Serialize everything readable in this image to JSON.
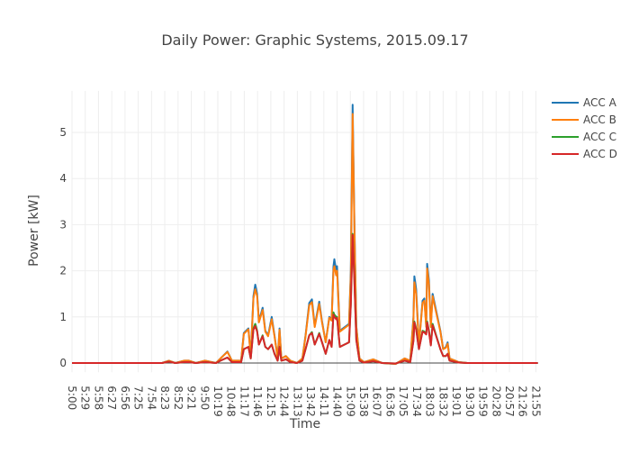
{
  "chart_data": {
    "type": "line",
    "title": "Daily Power: Graphic Systems,  2015.09.17",
    "xlabel": "Time",
    "ylabel": "Power [kW]",
    "xlim": [
      "5:00",
      "22:00"
    ],
    "ylim": [
      -0.2,
      5.9
    ],
    "grid": true,
    "legend_position": "top-right",
    "x_ticks": [
      "5:00",
      "5:29",
      "5:58",
      "6:27",
      "6:56",
      "7:25",
      "7:54",
      "8:23",
      "8:52",
      "9:21",
      "9:50",
      "10:19",
      "10:48",
      "11:17",
      "11:46",
      "12:15",
      "12:44",
      "13:13",
      "13:42",
      "14:11",
      "14:40",
      "15:09",
      "15:38",
      "16:07",
      "16:36",
      "17:05",
      "17:34",
      "18:03",
      "18:32",
      "19:01",
      "19:30",
      "19:59",
      "20:28",
      "20:57",
      "21:26",
      "21:55"
    ],
    "y_ticks": [
      0,
      1,
      2,
      3,
      4,
      5
    ],
    "x": [
      "5:00",
      "8:17",
      "8:32",
      "8:46",
      "9:06",
      "9:16",
      "9:31",
      "9:51",
      "10:15",
      "10:25",
      "10:40",
      "10:50",
      "11:10",
      "11:16",
      "11:26",
      "11:31",
      "11:37",
      "11:41",
      "11:45",
      "11:49",
      "11:57",
      "12:03",
      "12:09",
      "12:17",
      "12:23",
      "12:30",
      "12:34",
      "12:38",
      "12:48",
      "12:58",
      "13:12",
      "13:24",
      "13:31",
      "13:39",
      "13:45",
      "13:51",
      "14:01",
      "14:07",
      "14:15",
      "14:23",
      "14:28",
      "14:32",
      "14:34",
      "14:38",
      "14:40",
      "14:46",
      "15:06",
      "15:10",
      "15:14",
      "15:18",
      "15:22",
      "15:29",
      "15:39",
      "15:59",
      "16:19",
      "16:48",
      "17:08",
      "17:20",
      "17:27",
      "17:29",
      "17:33",
      "17:39",
      "17:47",
      "17:51",
      "17:55",
      "17:57",
      "18:01",
      "18:05",
      "18:09",
      "18:26",
      "18:32",
      "18:38",
      "18:42",
      "18:46",
      "19:06",
      "19:25",
      "21:59"
    ],
    "series": [
      {
        "name": "ACC A",
        "color": "#1f77b4",
        "values": [
          0,
          0,
          0.05,
          0,
          0.05,
          0.05,
          0,
          0.05,
          0,
          0.1,
          0.25,
          0.05,
          0.05,
          0.65,
          0.75,
          0.15,
          1.45,
          1.7,
          1.5,
          0.9,
          1.2,
          0.7,
          0.6,
          1.0,
          0.6,
          0.1,
          0.75,
          0.1,
          0.15,
          0.05,
          0,
          0.1,
          0.6,
          1.3,
          1.38,
          0.8,
          1.33,
          0.9,
          0.45,
          1.0,
          0.95,
          2.1,
          2.25,
          2.0,
          2.1,
          0.7,
          0.85,
          2.0,
          5.6,
          3.0,
          0.8,
          0.1,
          0.02,
          0.08,
          0,
          -0.02,
          0.1,
          0.05,
          1.0,
          1.88,
          1.6,
          0.4,
          1.35,
          1.4,
          0.8,
          2.15,
          1.78,
          0.8,
          1.5,
          0.7,
          0.3,
          0.35,
          0.45,
          0.1,
          0.02,
          0,
          0
        ]
      },
      {
        "name": "ACC B",
        "color": "#ff7f0e",
        "values": [
          0,
          0,
          0.05,
          0,
          0.05,
          0.05,
          0,
          0.05,
          0,
          0.1,
          0.24,
          0.05,
          0.05,
          0.63,
          0.73,
          0.15,
          1.4,
          1.6,
          1.45,
          0.88,
          1.15,
          0.68,
          0.58,
          0.95,
          0.58,
          0.1,
          0.72,
          0.1,
          0.15,
          0.05,
          0,
          0.1,
          0.58,
          1.25,
          1.32,
          0.78,
          1.28,
          0.88,
          0.45,
          0.98,
          0.92,
          2.0,
          2.1,
          1.9,
          2.0,
          0.68,
          0.83,
          1.9,
          5.4,
          2.9,
          0.78,
          0.1,
          0.02,
          0.08,
          0,
          -0.02,
          0.1,
          0.05,
          0.95,
          1.75,
          1.5,
          0.4,
          1.3,
          1.35,
          0.78,
          2.05,
          1.7,
          0.78,
          1.45,
          0.68,
          0.3,
          0.33,
          0.42,
          0.1,
          0.02,
          0,
          0
        ]
      },
      {
        "name": "ACC C",
        "color": "#2ca02c",
        "values": [
          0,
          0,
          0.03,
          0,
          0.02,
          0.02,
          0,
          0.02,
          0,
          0.05,
          0.12,
          0.02,
          0.02,
          0.3,
          0.35,
          0.1,
          0.75,
          0.85,
          0.7,
          0.4,
          0.6,
          0.35,
          0.3,
          0.4,
          0.2,
          0.05,
          0.35,
          0.05,
          0.08,
          0.02,
          0,
          0.05,
          0.3,
          0.6,
          0.67,
          0.4,
          0.65,
          0.45,
          0.2,
          0.5,
          0.35,
          1.1,
          1.05,
          1.0,
          1.0,
          0.35,
          0.45,
          1.3,
          2.8,
          1.8,
          0.5,
          0.05,
          0.01,
          0.04,
          0,
          -0.01,
          0.05,
          0.02,
          0.5,
          0.9,
          0.75,
          0.3,
          0.7,
          0.68,
          0.65,
          0.9,
          0.7,
          0.4,
          0.85,
          0.3,
          0.15,
          0.15,
          0.2,
          0.05,
          0.01,
          0,
          0
        ]
      },
      {
        "name": "ACC D",
        "color": "#d62728",
        "values": [
          0,
          0,
          0.03,
          0,
          0.02,
          0.02,
          0,
          0.02,
          0,
          0.05,
          0.12,
          0.02,
          0.02,
          0.3,
          0.35,
          0.1,
          0.72,
          0.8,
          0.68,
          0.4,
          0.58,
          0.35,
          0.3,
          0.4,
          0.2,
          0.05,
          0.35,
          0.05,
          0.08,
          0.02,
          0,
          0.05,
          0.3,
          0.6,
          0.65,
          0.4,
          0.63,
          0.45,
          0.2,
          0.5,
          0.35,
          1.05,
          1.0,
          0.95,
          0.98,
          0.35,
          0.45,
          1.25,
          2.78,
          1.75,
          0.5,
          0.05,
          0.01,
          0.04,
          0,
          -0.01,
          0.05,
          0.02,
          0.48,
          0.88,
          0.72,
          0.3,
          0.68,
          0.66,
          0.62,
          0.88,
          0.68,
          0.38,
          0.82,
          0.3,
          0.15,
          0.15,
          0.2,
          0.05,
          0.01,
          0,
          0
        ]
      }
    ]
  }
}
